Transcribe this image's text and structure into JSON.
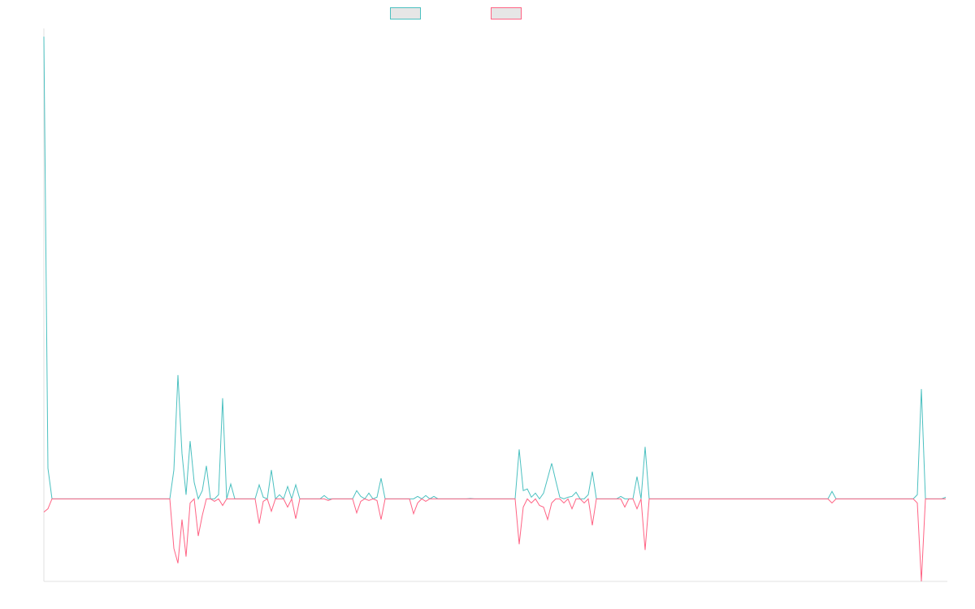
{
  "colors": {
    "series1": "#4bc0c0",
    "series2": "#ff6384",
    "swatch_fill": "#e6e6e6",
    "axis": "#e0e0e0"
  },
  "chart_data": {
    "type": "line",
    "title": "",
    "xlabel": "",
    "ylabel": "",
    "grid": false,
    "legend_placement": "top-center",
    "ylim": [
      -1.0,
      5.7
    ],
    "x_count": 223,
    "series": [
      {
        "name": "",
        "color": "#4bc0c0",
        "points": [
          [
            0,
            5.6
          ],
          [
            1,
            0.37
          ],
          [
            2,
            0
          ],
          [
            31,
            0
          ],
          [
            32,
            0.35
          ],
          [
            33,
            1.5
          ],
          [
            34,
            0.55
          ],
          [
            35,
            0.05
          ],
          [
            36,
            0.7
          ],
          [
            37,
            0.2
          ],
          [
            38,
            0
          ],
          [
            39,
            0.1
          ],
          [
            40,
            0.4
          ],
          [
            41,
            0
          ],
          [
            42,
            0
          ],
          [
            43,
            0.05
          ],
          [
            44,
            1.22
          ],
          [
            45,
            0
          ],
          [
            46,
            0.18
          ],
          [
            47,
            0
          ],
          [
            52,
            0
          ],
          [
            53,
            0.17
          ],
          [
            54,
            0.02
          ],
          [
            55,
            0
          ],
          [
            56,
            0.35
          ],
          [
            57,
            0
          ],
          [
            58,
            0.05
          ],
          [
            59,
            0
          ],
          [
            60,
            0.15
          ],
          [
            61,
            0
          ],
          [
            62,
            0.17
          ],
          [
            63,
            0
          ],
          [
            68,
            0
          ],
          [
            69,
            0.04
          ],
          [
            70,
            0
          ],
          [
            76,
            0
          ],
          [
            77,
            0.1
          ],
          [
            78,
            0.03
          ],
          [
            79,
            0
          ],
          [
            80,
            0.07
          ],
          [
            81,
            0
          ],
          [
            82,
            0.02
          ],
          [
            83,
            0.25
          ],
          [
            84,
            0
          ],
          [
            91,
            0
          ],
          [
            92,
            0.03
          ],
          [
            93,
            0
          ],
          [
            94,
            0.04
          ],
          [
            95,
            0
          ],
          [
            96,
            0.03
          ],
          [
            97,
            0
          ],
          [
            104,
            0
          ],
          [
            105,
            0.005
          ],
          [
            106,
            0
          ],
          [
            116,
            0
          ],
          [
            117,
            0.6
          ],
          [
            118,
            0.1
          ],
          [
            119,
            0.12
          ],
          [
            120,
            0.02
          ],
          [
            121,
            0.07
          ],
          [
            122,
            0
          ],
          [
            123,
            0.07
          ],
          [
            124,
            0.25
          ],
          [
            125,
            0.43
          ],
          [
            126,
            0.22
          ],
          [
            127,
            0.02
          ],
          [
            128,
            0
          ],
          [
            129,
            0.02
          ],
          [
            130,
            0.03
          ],
          [
            131,
            0.08
          ],
          [
            132,
            0
          ],
          [
            133,
            0
          ],
          [
            134,
            0.05
          ],
          [
            135,
            0.33
          ],
          [
            136,
            0
          ],
          [
            141,
            0
          ],
          [
            142,
            0.03
          ],
          [
            143,
            0
          ],
          [
            144,
            0
          ],
          [
            145,
            0
          ],
          [
            146,
            0.27
          ],
          [
            147,
            0
          ],
          [
            148,
            0.63
          ],
          [
            149,
            0
          ],
          [
            193,
            0
          ],
          [
            194,
            0.09
          ],
          [
            195,
            0
          ],
          [
            214,
            0
          ],
          [
            215,
            0.05
          ],
          [
            216,
            1.33
          ],
          [
            217,
            0
          ],
          [
            218,
            0
          ],
          [
            219,
            0
          ],
          [
            220,
            0
          ],
          [
            221,
            0
          ],
          [
            222,
            0.02
          ]
        ]
      },
      {
        "name": "",
        "color": "#ff6384",
        "points": [
          [
            0,
            -0.16
          ],
          [
            1,
            -0.12
          ],
          [
            2,
            0
          ],
          [
            31,
            0
          ],
          [
            32,
            -0.6
          ],
          [
            33,
            -0.78
          ],
          [
            34,
            -0.25
          ],
          [
            35,
            -0.7
          ],
          [
            36,
            -0.05
          ],
          [
            37,
            0
          ],
          [
            38,
            -0.45
          ],
          [
            39,
            -0.2
          ],
          [
            40,
            0
          ],
          [
            41,
            0
          ],
          [
            42,
            -0.03
          ],
          [
            43,
            0
          ],
          [
            44,
            -0.08
          ],
          [
            45,
            0
          ],
          [
            52,
            0
          ],
          [
            53,
            -0.3
          ],
          [
            54,
            -0.03
          ],
          [
            55,
            0
          ],
          [
            56,
            -0.15
          ],
          [
            57,
            0
          ],
          [
            58,
            0
          ],
          [
            59,
            0
          ],
          [
            60,
            -0.1
          ],
          [
            61,
            0
          ],
          [
            62,
            -0.24
          ],
          [
            63,
            0
          ],
          [
            68,
            0
          ],
          [
            69,
            0
          ],
          [
            70,
            -0.02
          ],
          [
            71,
            0
          ],
          [
            76,
            0
          ],
          [
            77,
            -0.17
          ],
          [
            78,
            -0.03
          ],
          [
            79,
            0
          ],
          [
            80,
            -0.02
          ],
          [
            81,
            0
          ],
          [
            82,
            -0.02
          ],
          [
            83,
            -0.25
          ],
          [
            84,
            0
          ],
          [
            90,
            0
          ],
          [
            91,
            -0.18
          ],
          [
            92,
            -0.05
          ],
          [
            93,
            0
          ],
          [
            94,
            -0.03
          ],
          [
            95,
            0
          ],
          [
            116,
            0
          ],
          [
            117,
            -0.55
          ],
          [
            118,
            -0.1
          ],
          [
            119,
            0
          ],
          [
            120,
            -0.05
          ],
          [
            121,
            0
          ],
          [
            122,
            -0.08
          ],
          [
            123,
            -0.1
          ],
          [
            124,
            -0.25
          ],
          [
            125,
            -0.05
          ],
          [
            126,
            0
          ],
          [
            127,
            0
          ],
          [
            128,
            -0.05
          ],
          [
            129,
            0
          ],
          [
            130,
            -0.12
          ],
          [
            131,
            0
          ],
          [
            132,
            0
          ],
          [
            133,
            -0.05
          ],
          [
            134,
            0
          ],
          [
            135,
            -0.32
          ],
          [
            136,
            0
          ],
          [
            141,
            0
          ],
          [
            142,
            0
          ],
          [
            143,
            -0.1
          ],
          [
            144,
            0
          ],
          [
            145,
            0
          ],
          [
            146,
            -0.12
          ],
          [
            147,
            0
          ],
          [
            148,
            -0.62
          ],
          [
            149,
            0
          ],
          [
            193,
            0
          ],
          [
            194,
            -0.05
          ],
          [
            195,
            0
          ],
          [
            214,
            0
          ],
          [
            215,
            -0.05
          ],
          [
            216,
            -1.0
          ],
          [
            217,
            0
          ],
          [
            218,
            0
          ],
          [
            219,
            0
          ],
          [
            220,
            0
          ],
          [
            221,
            0
          ],
          [
            222,
            0
          ]
        ]
      }
    ]
  }
}
